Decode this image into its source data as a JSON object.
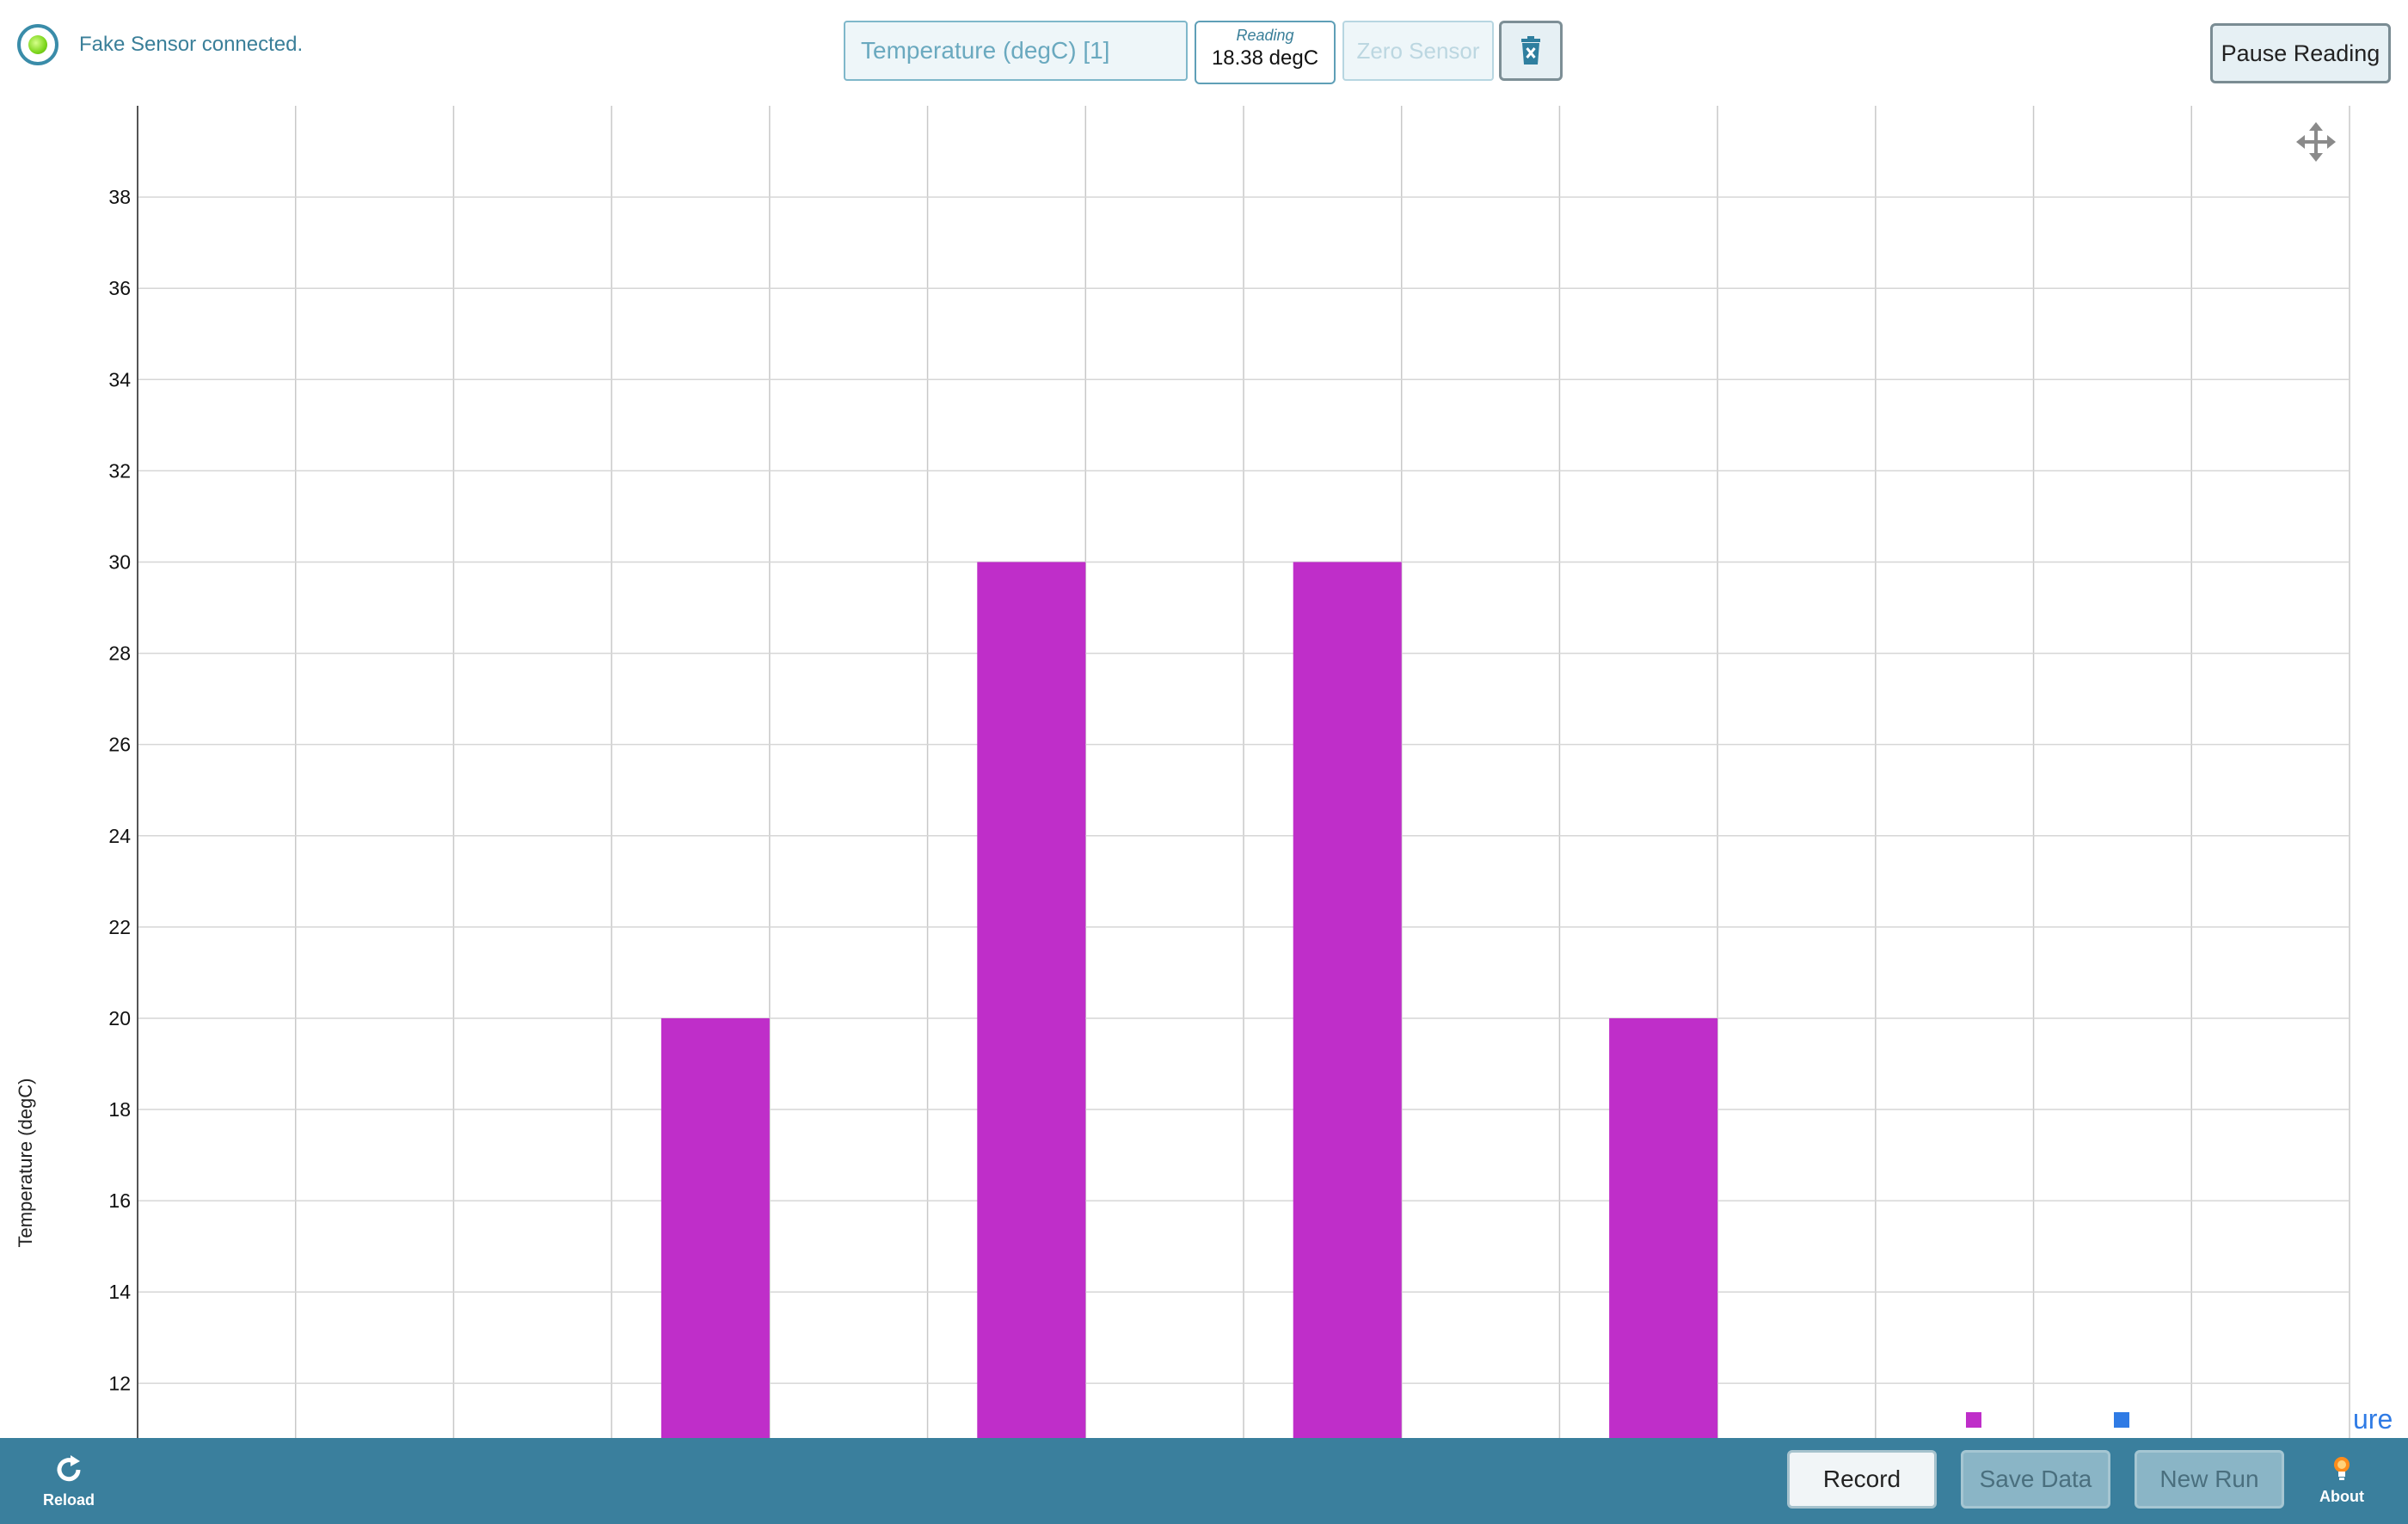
{
  "status": {
    "text": "Fake Sensor connected."
  },
  "toolbar": {
    "sensor_select": "Temperature (degC) [1]",
    "reading_label": "Reading",
    "reading_value": "18.38 degC",
    "zero_sensor": "Zero Sensor",
    "pause_reading": "Pause Reading"
  },
  "bottom": {
    "reload": "Reload",
    "record": "Record",
    "save_data": "Save Data",
    "new_run": "New Run",
    "about": "About"
  },
  "legend": {
    "partial_text": "ure",
    "colors": [
      "#bf2ec9",
      "#2f7be5"
    ]
  },
  "colors": {
    "accent": "#3a7f9d",
    "bar": "#bf2ec9"
  },
  "chart_data": {
    "type": "bar",
    "ylabel": "Temperature (degC)",
    "xlabel": "",
    "ylim": [
      10.8,
      40
    ],
    "yticks": [
      12,
      14,
      16,
      18,
      20,
      22,
      24,
      26,
      28,
      30,
      32,
      34,
      36,
      38
    ],
    "x_gridlines": 14,
    "bar_slots": [
      3,
      5,
      7,
      9
    ],
    "values": [
      20,
      30,
      30,
      20
    ],
    "grid": true
  }
}
